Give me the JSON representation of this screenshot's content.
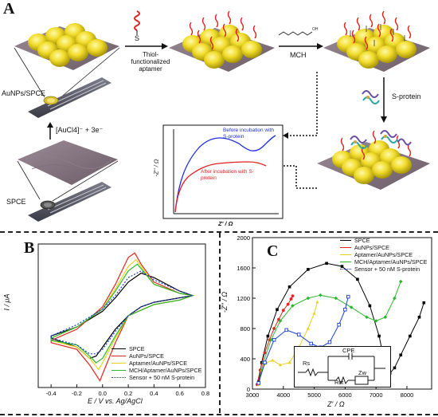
{
  "panel_a": {
    "letter": "A",
    "label_thiol_aptamer": "Thiol-functionalized aptamer",
    "label_s": "S",
    "label_mch": "MCH",
    "label_sprotein": "S-protein",
    "label_aunps_spce": "AuNPs/SPCE",
    "label_reduction": "[AuCl4]⁻ + 3e⁻",
    "label_spce": "SPCE",
    "inset": {
      "y_label": "-Z'' / Ω",
      "x_label": "Z' / Ω",
      "before_label": "Before incubation with S-protein",
      "after_label": "After incubation with S-protein"
    }
  },
  "panel_b": {
    "letter": "B",
    "xlabel": "E / V vs. Ag/AgCl",
    "ylabel": "I / μA",
    "xticks": [
      "-0.4",
      "-0.2",
      "0.0",
      "0.2",
      "0.4",
      "0.6",
      "0.8"
    ],
    "legend": [
      {
        "label": "SPCE",
        "color": "#000000",
        "style": "solid"
      },
      {
        "label": "AuNPs/SPCE",
        "color": "#e0261f",
        "style": "solid"
      },
      {
        "label": "Aptamer/AuNPs/SPCE",
        "color": "#e8d21a",
        "style": "solid"
      },
      {
        "label": "MCH/Aptamer/AuNPs/SPCE",
        "color": "#2bb82b",
        "style": "solid"
      },
      {
        "label": "Sensor + 50 nM S-protein",
        "color": "#1a3fd6",
        "style": "dotted"
      }
    ]
  },
  "panel_c": {
    "letter": "C",
    "xlabel": "Z' / Ω",
    "ylabel": "-Z'' / Ω",
    "xticks": [
      "3000",
      "4000",
      "5000",
      "6000",
      "7000",
      "8000"
    ],
    "yticks": [
      "0",
      "400",
      "800",
      "1200",
      "1600",
      "2000"
    ],
    "legend": [
      {
        "label": "SPCE",
        "color": "#000000"
      },
      {
        "label": "AuNPs/SPCE",
        "color": "#e0261f"
      },
      {
        "label": "Aptamer/AuNPs/SPCE",
        "color": "#e8d21a"
      },
      {
        "label": "MCH/Aptamer/AuNPs/SPCE",
        "color": "#2bb82b"
      },
      {
        "label": "Sensor + 50 nM S-protein",
        "color": "#1a3fd6"
      }
    ],
    "circuit": {
      "rs": "Rs",
      "cpe": "CPE",
      "rct": "Rct",
      "zw": "Zw"
    }
  },
  "chart_data": [
    {
      "type": "line",
      "xlabel": "E / V vs. Ag/AgCl",
      "ylabel": "I / μA",
      "xlim": [
        -0.5,
        0.8
      ],
      "series": [
        {
          "name": "SPCE",
          "x": [
            -0.4,
            -0.2,
            0.0,
            0.1,
            0.2,
            0.3,
            0.4,
            0.6,
            0.7,
            0.6,
            0.4,
            0.3,
            0.2,
            0.1,
            0.0,
            -0.05,
            -0.1,
            -0.2,
            -0.4
          ],
          "y": [
            -9,
            -5,
            2,
            8,
            15,
            19,
            17,
            11,
            9,
            8,
            6,
            4,
            0,
            -6,
            -14,
            -18,
            -19,
            -14,
            -10
          ]
        },
        {
          "name": "AuNPs/SPCE",
          "x": [
            -0.4,
            -0.2,
            0.0,
            0.1,
            0.2,
            0.25,
            0.3,
            0.4,
            0.6,
            0.7,
            0.6,
            0.4,
            0.2,
            0.1,
            0.0,
            -0.02,
            -0.1,
            -0.2,
            -0.4
          ],
          "y": [
            -11,
            -6,
            4,
            14,
            26,
            28,
            23,
            15,
            10,
            9,
            7,
            5,
            0,
            -12,
            -26,
            -29,
            -22,
            -15,
            -12
          ]
        },
        {
          "name": "Aptamer/AuNPs/SPCE",
          "x": [
            -0.4,
            -0.2,
            0.0,
            0.1,
            0.2,
            0.26,
            0.3,
            0.4,
            0.6,
            0.7,
            0.6,
            0.4,
            0.2,
            0.1,
            0.0,
            -0.03,
            -0.1,
            -0.2,
            -0.4
          ],
          "y": [
            -10,
            -5,
            3,
            12,
            22,
            25,
            22,
            14,
            10,
            9,
            7,
            5,
            0,
            -10,
            -21,
            -24,
            -19,
            -14,
            -11
          ]
        },
        {
          "name": "MCH/Aptamer/AuNPs/SPCE",
          "x": [
            -0.4,
            -0.2,
            0.0,
            0.1,
            0.2,
            0.27,
            0.3,
            0.4,
            0.6,
            0.7,
            0.6,
            0.4,
            0.2,
            0.1,
            0.0,
            -0.05,
            -0.1,
            -0.2,
            -0.4
          ],
          "y": [
            -10,
            -5,
            3,
            11,
            20,
            23,
            21,
            14,
            10,
            9,
            7,
            5,
            0,
            -9,
            -19,
            -21,
            -18,
            -13,
            -11
          ]
        },
        {
          "name": "Sensor + 50 nM S-protein",
          "x": [
            -0.4,
            -0.2,
            0.0,
            0.1,
            0.2,
            0.3,
            0.4,
            0.6,
            0.7,
            0.6,
            0.4,
            0.3,
            0.2,
            0.1,
            0.0,
            -0.05,
            -0.1,
            -0.2,
            -0.4
          ],
          "y": [
            -9,
            -4,
            3,
            9,
            17,
            20,
            16,
            11,
            9,
            8,
            6,
            4,
            0,
            -7,
            -15,
            -17,
            -17,
            -13,
            -10
          ]
        }
      ]
    },
    {
      "type": "scatter",
      "xlabel": "Z' / Ω",
      "ylabel": "-Z'' / Ω",
      "xlim": [
        3000,
        8800
      ],
      "ylim": [
        0,
        2000
      ],
      "series": [
        {
          "name": "SPCE",
          "x": [
            3200,
            3300,
            3500,
            3800,
            4200,
            4800,
            5400,
            5900,
            6400,
            6800,
            7100,
            7300,
            7450,
            7600,
            7800,
            8100,
            8400,
            8550
          ],
          "y": [
            100,
            350,
            700,
            1050,
            1350,
            1580,
            1660,
            1620,
            1450,
            1100,
            700,
            300,
            210,
            280,
            450,
            700,
            950,
            1140
          ]
        },
        {
          "name": "AuNPs/SPCE",
          "x": [
            3150,
            3250,
            3400,
            3550,
            3700,
            3850,
            4000,
            4150,
            4250,
            4300
          ],
          "y": [
            60,
            250,
            480,
            650,
            800,
            920,
            1040,
            1120,
            1190,
            1230
          ]
        },
        {
          "name": "Aptamer/AuNPs/SPCE",
          "x": [
            3200,
            3300,
            3450,
            3650,
            3900,
            4200,
            4500,
            4800,
            5000,
            5100
          ],
          "y": [
            60,
            250,
            350,
            380,
            320,
            350,
            550,
            800,
            1000,
            1150
          ]
        },
        {
          "name": "MCH/Aptamer/AuNPs/SPCE",
          "x": [
            3200,
            3350,
            3600,
            3900,
            4300,
            4800,
            5200,
            5700,
            6200,
            6700,
            7000,
            7300,
            7600,
            7800
          ],
          "y": [
            80,
            350,
            650,
            900,
            1100,
            1200,
            1240,
            1200,
            1080,
            950,
            900,
            950,
            1200,
            1420
          ]
        },
        {
          "name": "Sensor + 50 nM S-protein",
          "x": [
            3200,
            3400,
            3700,
            4100,
            4500,
            4900,
            5200,
            5500,
            5800,
            6000,
            6100
          ],
          "y": [
            80,
            350,
            650,
            780,
            720,
            600,
            550,
            620,
            850,
            1050,
            1220
          ]
        }
      ]
    }
  ]
}
